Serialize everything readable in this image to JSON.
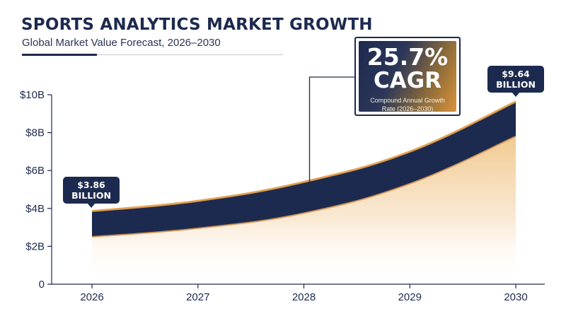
{
  "header": {
    "title": "SPORTS ANALYTICS MARKET GROWTH",
    "subtitle": "Global Market Value Forecast, 2026–2030"
  },
  "callout": {
    "value": "25.7%",
    "label": "CAGR",
    "description": "Compound Annual Growth Rate (2026–2030)"
  },
  "markers": {
    "start": {
      "line1": "$3.86",
      "line2": "BILLION"
    },
    "end": {
      "line1": "$9.64",
      "line2": "BILLION"
    }
  },
  "colors": {
    "navy": "#1d2a4f",
    "orange": "#e8a24a",
    "light_fill": "#f4d7ae"
  },
  "chart_data": {
    "type": "area",
    "title": "SPORTS ANALYTICS MARKET GROWTH",
    "subtitle": "Global Market Value Forecast, 2026–2030",
    "categories": [
      "2026",
      "2027",
      "2028",
      "2029",
      "2030"
    ],
    "x": [
      2026,
      2027,
      2028,
      2029,
      2030
    ],
    "ylim": [
      0,
      10
    ],
    "yticks": [
      0,
      2,
      4,
      6,
      8,
      10
    ],
    "ytick_labels": [
      "0",
      "$2B",
      "$4B",
      "$6B",
      "$8B",
      "$10B"
    ],
    "series": [
      {
        "values": [
          3.86,
          4.4,
          5.4,
          7.0,
          9.64
        ]
      },
      {
        "values": [
          2.5,
          2.95,
          3.75,
          5.3,
          7.8
        ]
      }
    ],
    "grid": false,
    "legend": "none"
  }
}
